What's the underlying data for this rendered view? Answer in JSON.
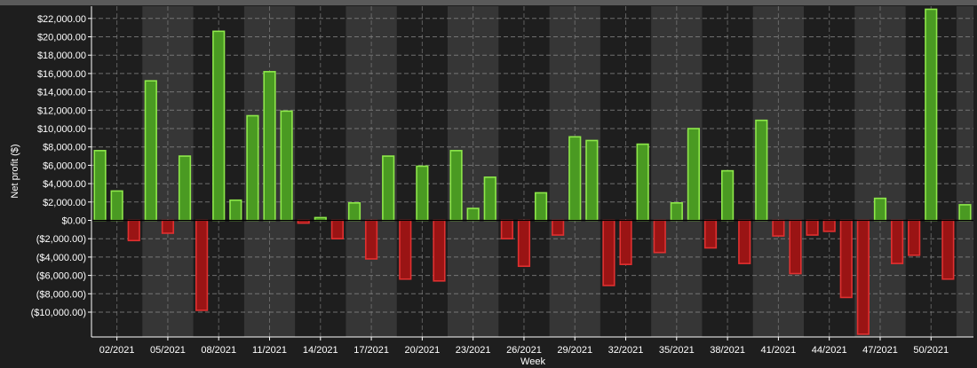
{
  "chart_data": {
    "type": "bar",
    "title": "",
    "xlabel": "Week",
    "ylabel": "Net profit ($)",
    "ylim": [
      -12500,
      23000
    ],
    "y_ticks": [
      22000,
      20000,
      18000,
      16000,
      14000,
      12000,
      10000,
      8000,
      6000,
      4000,
      2000,
      0,
      -2000,
      -4000,
      -6000,
      -8000,
      -10000
    ],
    "y_tick_labels": [
      "$22,000.00",
      "$20,000.00",
      "$18,000.00",
      "$16,000.00",
      "$14,000.00",
      "$12,000.00",
      "$10,000.00",
      "$8,000.00",
      "$6,000.00",
      "$4,000.00",
      "$2,000.00",
      "$0.00",
      "($2,000.00)",
      "($4,000.00)",
      "($6,000.00)",
      "($8,000.00)",
      "($10,000.00)"
    ],
    "categories": [
      "01/2021",
      "02/2021",
      "03/2021",
      "04/2021",
      "05/2021",
      "06/2021",
      "07/2021",
      "08/2021",
      "09/2021",
      "10/2021",
      "11/2021",
      "12/2021",
      "13/2021",
      "14/2021",
      "15/2021",
      "16/2021",
      "17/2021",
      "18/2021",
      "19/2021",
      "20/2021",
      "21/2021",
      "22/2021",
      "23/2021",
      "24/2021",
      "25/2021",
      "26/2021",
      "27/2021",
      "28/2021",
      "29/2021",
      "30/2021",
      "31/2021",
      "32/2021",
      "33/2021",
      "34/2021",
      "35/2021",
      "36/2021",
      "37/2021",
      "38/2021",
      "39/2021",
      "40/2021",
      "41/2021",
      "42/2021",
      "43/2021",
      "44/2021",
      "45/2021",
      "46/2021",
      "47/2021",
      "48/2021",
      "49/2021",
      "50/2021",
      "51/2021",
      "52/2021"
    ],
    "x_tick_labels": [
      "02/2021",
      "05/2021",
      "08/2021",
      "11/2021",
      "14/2021",
      "17/2021",
      "20/2021",
      "23/2021",
      "26/2021",
      "29/2021",
      "32/2021",
      "35/2021",
      "38/2021",
      "41/2021",
      "44/2021",
      "47/2021",
      "50/2021"
    ],
    "values": [
      7600,
      3200,
      -2200,
      15200,
      -1400,
      7000,
      -9800,
      20600,
      2200,
      11400,
      16200,
      11900,
      -300,
      300,
      -2000,
      1900,
      -4200,
      7000,
      -6400,
      5900,
      -6600,
      7600,
      1300,
      4700,
      -2000,
      -5000,
      3000,
      -1600,
      9100,
      8700,
      -7100,
      -4800,
      8300,
      -3500,
      1900,
      10000,
      -3000,
      5400,
      -4700,
      10900,
      -1700,
      -5800,
      -1600,
      -1200,
      -8400,
      -12400,
      2400,
      -4700,
      -3800,
      23000,
      -6400,
      1700
    ],
    "colors": {
      "positive_fill": "#4a9a22",
      "positive_edge": "#8ee84a",
      "negative_fill": "#9a1414",
      "negative_edge": "#e03030",
      "background": "#1e1e1e",
      "alt_band": "#363636",
      "grid": "#8a8a8a",
      "text": "#ffffff"
    },
    "grid": true,
    "legend": "none"
  }
}
